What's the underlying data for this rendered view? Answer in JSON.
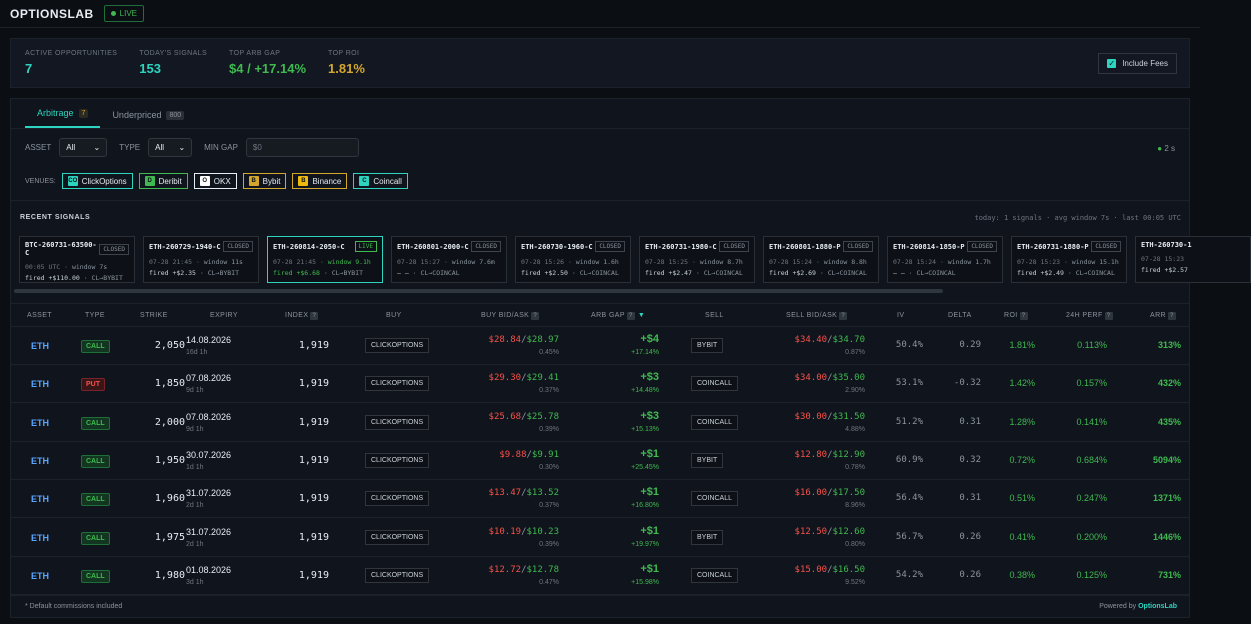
{
  "app": {
    "brand": "OPTIONSLAB",
    "live_label": "LIVE"
  },
  "stats": [
    {
      "label": "ACTIVE OPPORTUNITIES",
      "value": "7",
      "color": "#2dd4bf"
    },
    {
      "label": "TODAY'S SIGNALS",
      "value": "153",
      "color": "#2dd4bf"
    },
    {
      "label": "TOP ARB GAP",
      "value": "$4 / +17.14%",
      "color": "#3fb950"
    },
    {
      "label": "TOP ROI",
      "value": "1.81%",
      "color": "#d4a72c"
    }
  ],
  "fees": {
    "label": "Include Fees",
    "checked": true
  },
  "tabs": [
    {
      "label": "Arbitrage",
      "count": "7",
      "active": true
    },
    {
      "label": "Underpriced",
      "count": "800",
      "active": false
    }
  ],
  "filters": {
    "asset_label": "ASSET",
    "asset_value": "All",
    "type_label": "TYPE",
    "type_value": "All",
    "mingap_label": "MIN GAP",
    "mingap_placeholder": "$0",
    "refresh": "2 s"
  },
  "venues": {
    "label": "VENUES:",
    "items": [
      {
        "name": "ClickOptions",
        "icon": "CO",
        "icon_bg": "#2dd4bf"
      },
      {
        "name": "Deribit",
        "icon": "D",
        "icon_bg": "#3fb950"
      },
      {
        "name": "OKX",
        "icon": "O",
        "icon_bg": "#ffffff"
      },
      {
        "name": "Bybit",
        "icon": "B",
        "icon_bg": "#d4a72c"
      },
      {
        "name": "Binance",
        "icon": "B",
        "icon_bg": "#f0b90b"
      },
      {
        "name": "Coincall",
        "icon": "C",
        "icon_bg": "#2dd4bf"
      }
    ]
  },
  "recent": {
    "title": "RECENT SIGNALS",
    "meta": "today: 1 signals · avg window 7s · last 00:05 UTC",
    "cards": [
      {
        "name": "BTC-260731-63500-C",
        "status": "CLOSED",
        "time": "00:05 UTC",
        "window": "window 7s",
        "fired": "fired +$110.00",
        "venues": "CL→BYBIT",
        "live": false
      },
      {
        "name": "ETH-260729-1940-C",
        "status": "CLOSED",
        "time": "07-28 21:45",
        "window": "window 11s",
        "fired": "fired +$2.35",
        "venues": "CL→BYBIT",
        "live": false
      },
      {
        "name": "ETH-260814-2050-C",
        "status": "LIVE",
        "time": "07-28 21:45",
        "window": "window 9.1h",
        "fired": "fired +$6.68",
        "venues": "CL→BYBIT",
        "live": true
      },
      {
        "name": "ETH-260801-2000-C",
        "status": "CLOSED",
        "time": "07-28 15:27",
        "window": "window 7.6m",
        "fired": "– –",
        "venues": "CL→COINCAL",
        "live": false
      },
      {
        "name": "ETH-260730-1960-C",
        "status": "CLOSED",
        "time": "07-28 15:26",
        "window": "window 1.6h",
        "fired": "fired +$2.50",
        "venues": "CL→COINCAL",
        "live": false
      },
      {
        "name": "ETH-260731-1980-C",
        "status": "CLOSED",
        "time": "07-28 15:25",
        "window": "window 8.7h",
        "fired": "fired +$2.47",
        "venues": "CL→COINCAL",
        "live": false
      },
      {
        "name": "ETH-260801-1880-P",
        "status": "CLOSED",
        "time": "07-28 15:24",
        "window": "window 8.8h",
        "fired": "fired +$2.69",
        "venues": "CL→COINCAL",
        "live": false
      },
      {
        "name": "ETH-260814-1850-P",
        "status": "CLOSED",
        "time": "07-28 15:24",
        "window": "window 1.7h",
        "fired": "– –",
        "venues": "CL→COINCAL",
        "live": false
      },
      {
        "name": "ETH-260731-1880-P",
        "status": "CLOSED",
        "time": "07-28 15:23",
        "window": "window 15.1h",
        "fired": "fired +$2.49",
        "venues": "CL→COINCAL",
        "live": false
      },
      {
        "name": "ETH-260730-1",
        "status": "",
        "time": "07-28 15:23",
        "window": "",
        "fired": "fired +$2.57",
        "venues": "",
        "live": false
      }
    ]
  },
  "table": {
    "columns": [
      "ASSET",
      "TYPE",
      "STRIKE",
      "EXPIRY",
      "INDEX",
      "BUY",
      "BUY BID/ASK",
      "ARB GAP",
      "SELL",
      "SELL BID/ASK",
      "IV",
      "DELTA",
      "ROI",
      "24H PERF",
      "ARR"
    ],
    "rows": [
      {
        "asset": "ETH",
        "type": "CALL",
        "strike": "2,050",
        "expiry": "14.08.2026",
        "expiry_rel": "16d 1h",
        "index": "1,919",
        "buy": "CLICKOPTIONS",
        "buy_bid": "$28.84",
        "buy_ask": "$28.97",
        "buy_pct": "0.45%",
        "gap": "+$4",
        "gap_pct": "+17.14%",
        "sell": "BYBIT",
        "sell_bid": "$34.40",
        "sell_ask": "$34.70",
        "sell_pct": "0.87%",
        "iv": "50.4%",
        "delta": "0.29",
        "roi": "1.81%",
        "perf": "0.113%",
        "arr": "313%"
      },
      {
        "asset": "ETH",
        "type": "PUT",
        "strike": "1,850",
        "expiry": "07.08.2026",
        "expiry_rel": "9d 1h",
        "index": "1,919",
        "buy": "CLICKOPTIONS",
        "buy_bid": "$29.30",
        "buy_ask": "$29.41",
        "buy_pct": "0.37%",
        "gap": "+$3",
        "gap_pct": "+14.48%",
        "sell": "COINCALL",
        "sell_bid": "$34.00",
        "sell_ask": "$35.00",
        "sell_pct": "2.90%",
        "iv": "53.1%",
        "delta": "-0.32",
        "roi": "1.42%",
        "perf": "0.157%",
        "arr": "432%"
      },
      {
        "asset": "ETH",
        "type": "CALL",
        "strike": "2,000",
        "expiry": "07.08.2026",
        "expiry_rel": "9d 1h",
        "index": "1,919",
        "buy": "CLICKOPTIONS",
        "buy_bid": "$25.68",
        "buy_ask": "$25.78",
        "buy_pct": "0.39%",
        "gap": "+$3",
        "gap_pct": "+15.13%",
        "sell": "COINCALL",
        "sell_bid": "$30.00",
        "sell_ask": "$31.50",
        "sell_pct": "4.88%",
        "iv": "51.2%",
        "delta": "0.31",
        "roi": "1.28%",
        "perf": "0.141%",
        "arr": "435%"
      },
      {
        "asset": "ETH",
        "type": "CALL",
        "strike": "1,950",
        "expiry": "30.07.2026",
        "expiry_rel": "1d 1h",
        "index": "1,919",
        "buy": "CLICKOPTIONS",
        "buy_bid": "$9.88",
        "buy_ask": "$9.91",
        "buy_pct": "0.30%",
        "gap": "+$1",
        "gap_pct": "+25.45%",
        "sell": "BYBIT",
        "sell_bid": "$12.80",
        "sell_ask": "$12.90",
        "sell_pct": "0.78%",
        "iv": "60.9%",
        "delta": "0.32",
        "roi": "0.72%",
        "perf": "0.684%",
        "arr": "5094%"
      },
      {
        "asset": "ETH",
        "type": "CALL",
        "strike": "1,960",
        "expiry": "31.07.2026",
        "expiry_rel": "2d 1h",
        "index": "1,919",
        "buy": "CLICKOPTIONS",
        "buy_bid": "$13.47",
        "buy_ask": "$13.52",
        "buy_pct": "0.37%",
        "gap": "+$1",
        "gap_pct": "+16.80%",
        "sell": "COINCALL",
        "sell_bid": "$16.00",
        "sell_ask": "$17.50",
        "sell_pct": "8.96%",
        "iv": "56.4%",
        "delta": "0.31",
        "roi": "0.51%",
        "perf": "0.247%",
        "arr": "1371%"
      },
      {
        "asset": "ETH",
        "type": "CALL",
        "strike": "1,975",
        "expiry": "31.07.2026",
        "expiry_rel": "2d 1h",
        "index": "1,919",
        "buy": "CLICKOPTIONS",
        "buy_bid": "$10.19",
        "buy_ask": "$10.23",
        "buy_pct": "0.39%",
        "gap": "+$1",
        "gap_pct": "+19.97%",
        "sell": "BYBIT",
        "sell_bid": "$12.50",
        "sell_ask": "$12.60",
        "sell_pct": "0.80%",
        "iv": "56.7%",
        "delta": "0.26",
        "roi": "0.41%",
        "perf": "0.200%",
        "arr": "1446%"
      },
      {
        "asset": "ETH",
        "type": "CALL",
        "strike": "1,980",
        "expiry": "01.08.2026",
        "expiry_rel": "3d 1h",
        "index": "1,919",
        "buy": "CLICKOPTIONS",
        "buy_bid": "$12.72",
        "buy_ask": "$12.78",
        "buy_pct": "0.47%",
        "gap": "+$1",
        "gap_pct": "+15.98%",
        "sell": "COINCALL",
        "sell_bid": "$15.00",
        "sell_ask": "$16.50",
        "sell_pct": "9.52%",
        "iv": "54.2%",
        "delta": "0.26",
        "roi": "0.38%",
        "perf": "0.125%",
        "arr": "731%"
      }
    ]
  },
  "footer": {
    "note": "* Default commissions included",
    "powered_prefix": "Powered by",
    "powered_brand": "OptionsLab"
  }
}
